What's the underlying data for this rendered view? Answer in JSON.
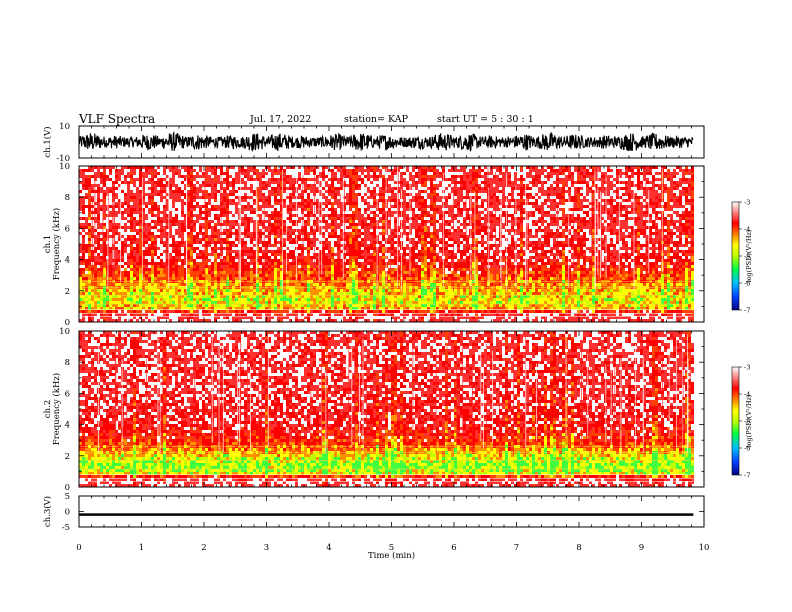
{
  "header": {
    "title": "VLF Spectra",
    "date": "Jul. 17, 2022",
    "station": "station= KAP",
    "start": "start  UT =   5 : 30 : 1"
  },
  "chart_data": [
    {
      "type": "line",
      "panel": "waveform-ch1",
      "ylabel": "ch.1(V)",
      "ylim": [
        -10,
        10
      ],
      "yticks": [
        "10",
        "-10"
      ],
      "xlim": [
        0,
        10
      ],
      "description_values": {
        "amplitude_range": [
          -6,
          6
        ],
        "duration_min": 9.83
      }
    },
    {
      "type": "heatmap",
      "panel": "spectrogram-ch1",
      "ylabel": "ch.1",
      "ylabel2": "Frequency (kHz)",
      "ylim": [
        0,
        10
      ],
      "yticks": [
        "0",
        "2",
        "4",
        "6",
        "8",
        "10"
      ],
      "xlim": [
        0,
        10
      ],
      "band_profile": [
        {
          "f": 0.0,
          "level": -3.5
        },
        {
          "f": 0.3,
          "level": -3.0
        },
        {
          "f": 0.6,
          "level": -3.3
        },
        {
          "f": 1.0,
          "level": -4.6
        },
        {
          "f": 1.5,
          "level": -4.8
        },
        {
          "f": 2.0,
          "level": -4.6
        },
        {
          "f": 2.5,
          "level": -4.4
        },
        {
          "f": 3.0,
          "level": -4.1
        },
        {
          "f": 3.5,
          "level": -3.9
        },
        {
          "f": 4.0,
          "level": -3.6
        },
        {
          "f": 6.0,
          "level": -3.4
        },
        {
          "f": 10.0,
          "level": -3.3
        }
      ],
      "colorbar": {
        "label": "log(PSD)(V²/Hz)",
        "ticks": [
          "-3",
          "-4",
          "-5",
          "-6",
          "-7"
        ],
        "range": [
          -7,
          -3
        ],
        "colors": [
          "#000080",
          "#0040ff",
          "#00c0ff",
          "#00ff40",
          "#c0ff00",
          "#ffff00",
          "#ff8000",
          "#ff0000",
          "#ffffff"
        ]
      }
    },
    {
      "type": "heatmap",
      "panel": "spectrogram-ch2",
      "ylabel": "ch.2",
      "ylabel2": "Frequency (kHz)",
      "ylim": [
        0,
        10
      ],
      "yticks": [
        "0",
        "2",
        "4",
        "6",
        "8",
        "10"
      ],
      "xlim": [
        0,
        10
      ],
      "band_profile": [
        {
          "f": 0.0,
          "level": -3.5
        },
        {
          "f": 0.3,
          "level": -3.0
        },
        {
          "f": 0.6,
          "level": -3.3
        },
        {
          "f": 1.0,
          "level": -4.9
        },
        {
          "f": 1.5,
          "level": -5.1
        },
        {
          "f": 2.0,
          "level": -4.8
        },
        {
          "f": 2.5,
          "level": -4.4
        },
        {
          "f": 3.0,
          "level": -4.0
        },
        {
          "f": 3.5,
          "level": -3.8
        },
        {
          "f": 4.0,
          "level": -3.6
        },
        {
          "f": 6.0,
          "level": -3.4
        },
        {
          "f": 10.0,
          "level": -3.3
        }
      ],
      "colorbar": {
        "label": "log(PSD)(V²/Hz)",
        "ticks": [
          "-3",
          "-4",
          "-5",
          "-6",
          "-7"
        ],
        "range": [
          -7,
          -3
        ]
      }
    },
    {
      "type": "line",
      "panel": "waveform-ch3",
      "ylabel": "ch.3(V)",
      "ylim": [
        -5,
        5
      ],
      "yticks": [
        "5",
        "0",
        "-5"
      ],
      "xlim": [
        0,
        10
      ],
      "xticks": [
        "0",
        "1",
        "2",
        "3",
        "4",
        "5",
        "6",
        "7",
        "8",
        "9",
        "10"
      ],
      "xlabel": "Time (min)",
      "description_values": {
        "level": -1,
        "amplitude": 0.4,
        "duration_min": 9.83
      }
    }
  ]
}
